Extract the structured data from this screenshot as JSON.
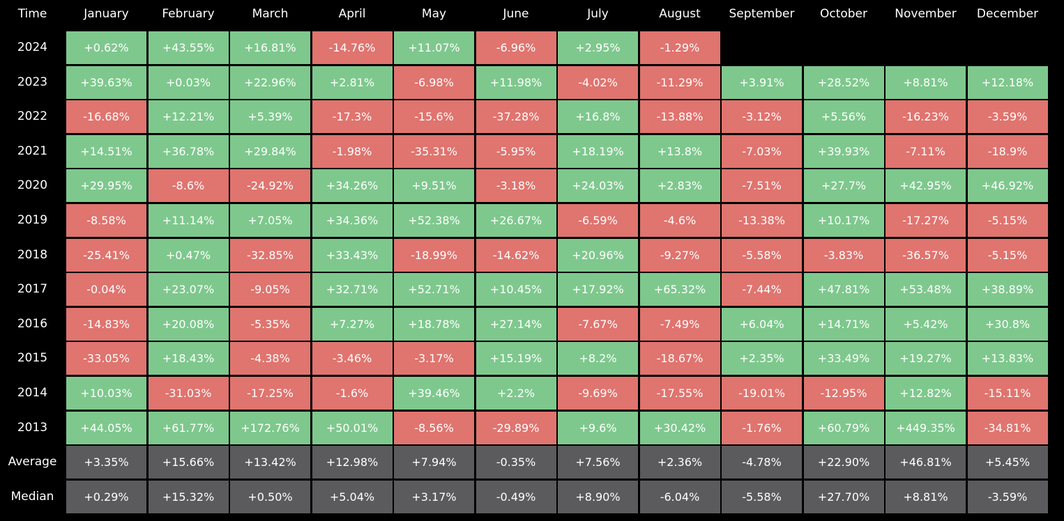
{
  "chart_data": {
    "type": "heatmap",
    "corner_label": "Time",
    "columns": [
      "January",
      "February",
      "March",
      "April",
      "May",
      "June",
      "July",
      "August",
      "September",
      "October",
      "November",
      "December"
    ],
    "rows": [
      {
        "label": "2024",
        "kind": "year",
        "values": [
          "+0.62%",
          "+43.55%",
          "+16.81%",
          "-14.76%",
          "+11.07%",
          "-6.96%",
          "+2.95%",
          "-1.29%",
          null,
          null,
          null,
          null
        ]
      },
      {
        "label": "2023",
        "kind": "year",
        "values": [
          "+39.63%",
          "+0.03%",
          "+22.96%",
          "+2.81%",
          "-6.98%",
          "+11.98%",
          "-4.02%",
          "-11.29%",
          "+3.91%",
          "+28.52%",
          "+8.81%",
          "+12.18%"
        ]
      },
      {
        "label": "2022",
        "kind": "year",
        "values": [
          "-16.68%",
          "+12.21%",
          "+5.39%",
          "-17.3%",
          "-15.6%",
          "-37.28%",
          "+16.8%",
          "-13.88%",
          "-3.12%",
          "+5.56%",
          "-16.23%",
          "-3.59%"
        ]
      },
      {
        "label": "2021",
        "kind": "year",
        "values": [
          "+14.51%",
          "+36.78%",
          "+29.84%",
          "-1.98%",
          "-35.31%",
          "-5.95%",
          "+18.19%",
          "+13.8%",
          "-7.03%",
          "+39.93%",
          "-7.11%",
          "-18.9%"
        ]
      },
      {
        "label": "2020",
        "kind": "year",
        "values": [
          "+29.95%",
          "-8.6%",
          "-24.92%",
          "+34.26%",
          "+9.51%",
          "-3.18%",
          "+24.03%",
          "+2.83%",
          "-7.51%",
          "+27.7%",
          "+42.95%",
          "+46.92%"
        ]
      },
      {
        "label": "2019",
        "kind": "year",
        "values": [
          "-8.58%",
          "+11.14%",
          "+7.05%",
          "+34.36%",
          "+52.38%",
          "+26.67%",
          "-6.59%",
          "-4.6%",
          "-13.38%",
          "+10.17%",
          "-17.27%",
          "-5.15%"
        ]
      },
      {
        "label": "2018",
        "kind": "year",
        "values": [
          "-25.41%",
          "+0.47%",
          "-32.85%",
          "+33.43%",
          "-18.99%",
          "-14.62%",
          "+20.96%",
          "-9.27%",
          "-5.58%",
          "-3.83%",
          "-36.57%",
          "-5.15%"
        ]
      },
      {
        "label": "2017",
        "kind": "year",
        "values": [
          "-0.04%",
          "+23.07%",
          "-9.05%",
          "+32.71%",
          "+52.71%",
          "+10.45%",
          "+17.92%",
          "+65.32%",
          "-7.44%",
          "+47.81%",
          "+53.48%",
          "+38.89%"
        ]
      },
      {
        "label": "2016",
        "kind": "year",
        "values": [
          "-14.83%",
          "+20.08%",
          "-5.35%",
          "+7.27%",
          "+18.78%",
          "+27.14%",
          "-7.67%",
          "-7.49%",
          "+6.04%",
          "+14.71%",
          "+5.42%",
          "+30.8%"
        ]
      },
      {
        "label": "2015",
        "kind": "year",
        "values": [
          "-33.05%",
          "+18.43%",
          "-4.38%",
          "-3.46%",
          "-3.17%",
          "+15.19%",
          "+8.2%",
          "-18.67%",
          "+2.35%",
          "+33.49%",
          "+19.27%",
          "+13.83%"
        ]
      },
      {
        "label": "2014",
        "kind": "year",
        "values": [
          "+10.03%",
          "-31.03%",
          "-17.25%",
          "-1.6%",
          "+39.46%",
          "+2.2%",
          "-9.69%",
          "-17.55%",
          "-19.01%",
          "-12.95%",
          "+12.82%",
          "-15.11%"
        ]
      },
      {
        "label": "2013",
        "kind": "year",
        "values": [
          "+44.05%",
          "+61.77%",
          "+172.76%",
          "+50.01%",
          "-8.56%",
          "-29.89%",
          "+9.6%",
          "+30.42%",
          "-1.76%",
          "+60.79%",
          "+449.35%",
          "-34.81%"
        ]
      },
      {
        "label": "Average",
        "kind": "summary",
        "values": [
          "+3.35%",
          "+15.66%",
          "+13.42%",
          "+12.98%",
          "+7.94%",
          "-0.35%",
          "+7.56%",
          "+2.36%",
          "-4.78%",
          "+22.90%",
          "+46.81%",
          "+5.45%"
        ]
      },
      {
        "label": "Median",
        "kind": "summary",
        "values": [
          "+0.29%",
          "+15.32%",
          "+0.50%",
          "+5.04%",
          "+3.17%",
          "-0.49%",
          "+8.90%",
          "-6.04%",
          "-5.58%",
          "+27.70%",
          "+8.81%",
          "-3.59%"
        ]
      }
    ],
    "colors": {
      "background": "#000000",
      "positive": "#7ec88d",
      "negative": "#e0746f",
      "summary": "#5b5b5e",
      "text": "#ffffff"
    }
  }
}
